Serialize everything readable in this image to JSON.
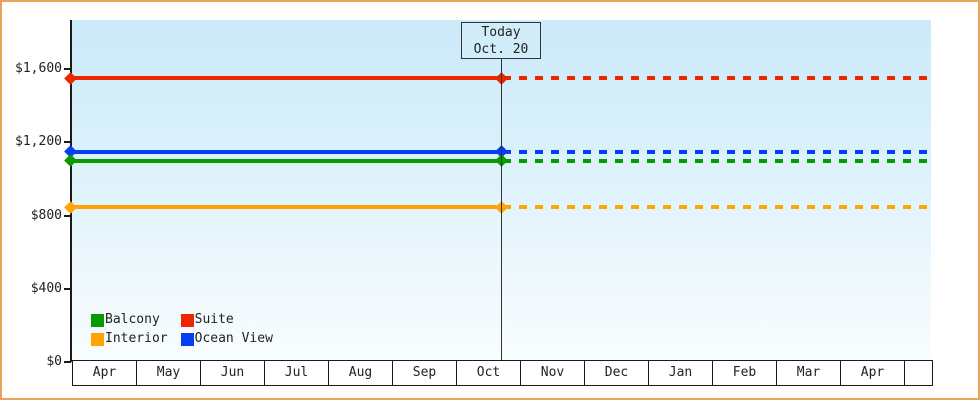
{
  "colors": {
    "frame_border": "#e9a45c",
    "axis": "#1a1a1a",
    "plot_bg_top": "#cbeafa",
    "plot_bg_bottom": "#f8fdff",
    "today_line": "#333333",
    "today_box_bg": "#d2edfa",
    "month_cell_bg": "#ffffff"
  },
  "chart": {
    "y_tick_labels": [
      "$1,600",
      "$1,200",
      "$800",
      "$400",
      "$0"
    ],
    "today": {
      "line1": "Today",
      "line2": "Oct. 20"
    },
    "legend": [
      {
        "label": "Balcony",
        "color": "#089b00"
      },
      {
        "label": "Suite",
        "color": "#ee2600"
      },
      {
        "label": "Interior",
        "color": "#ffa400"
      },
      {
        "label": "Ocean View",
        "color": "#0440f0"
      }
    ]
  },
  "chart_data": {
    "type": "line",
    "title": "",
    "xlabel": "",
    "ylabel": "",
    "x": [
      "Apr",
      "May",
      "Jun",
      "Jul",
      "Aug",
      "Sep",
      "Oct",
      "Nov",
      "Dec",
      "Jan",
      "Feb",
      "Mar",
      "Apr"
    ],
    "y_ticks": [
      1600,
      1200,
      800,
      400,
      0
    ],
    "ylim": [
      0,
      1870
    ],
    "grid": false,
    "legend_position": "bottom-left-inside",
    "today_annotation": {
      "label": "Today",
      "date": "Oct. 20",
      "month": "Oct",
      "month_fraction": 0.65
    },
    "line_style": {
      "before_today": "solid",
      "after_today": "dotted",
      "markers": "diamond at series start and at today"
    },
    "series": [
      {
        "name": "Suite",
        "color": "#ee2600",
        "value": 1550
      },
      {
        "name": "Ocean View",
        "color": "#0440f0",
        "value": 1150
      },
      {
        "name": "Balcony",
        "color": "#089b00",
        "value": 1100
      },
      {
        "name": "Interior",
        "color": "#ffa400",
        "value": 845
      }
    ]
  }
}
